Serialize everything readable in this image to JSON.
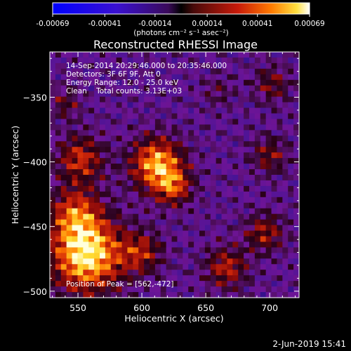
{
  "colorbar": {
    "ticks": [
      "-0.00069",
      "-0.00041",
      "-0.00014",
      "0.00014",
      "0.00041",
      "0.00069"
    ],
    "unit_label": "(photons cm⁻² s⁻¹ asec⁻²)",
    "range": [
      -0.00069,
      0.00069
    ]
  },
  "chart_data": {
    "type": "heatmap",
    "title": "Reconstructed RHESSI Image",
    "xlabel": "Heliocentric X (arcsec)",
    "ylabel": "Heliocentric Y (arcsec)",
    "xlim": [
      528,
      723
    ],
    "ylim": [
      -505,
      -315
    ],
    "x_ticks": [
      550,
      600,
      650,
      700
    ],
    "y_ticks": [
      -350,
      -400,
      -450,
      -500
    ],
    "x_tick_labels": [
      "550",
      "600",
      "650",
      "700"
    ],
    "y_tick_labels": [
      "−350",
      "−400",
      "−450",
      "−500"
    ],
    "colormap": "blue-purple-red-yellow-white",
    "grid": false,
    "annotations": [
      "14-Sep-2014 20:29:46.000 to 20:35:46.000",
      "Detectors: 3F 6F 9F, Att 0",
      "Energy Range: 12.0 - 25.0 keV",
      "Clean    Total counts: 3.13E+03"
    ],
    "peak_label": "Position of Peak = [562,-472]",
    "peak_position": [
      562,
      -472
    ]
  },
  "footer": {
    "timestamp": "2-Jun-2019 15:41"
  }
}
